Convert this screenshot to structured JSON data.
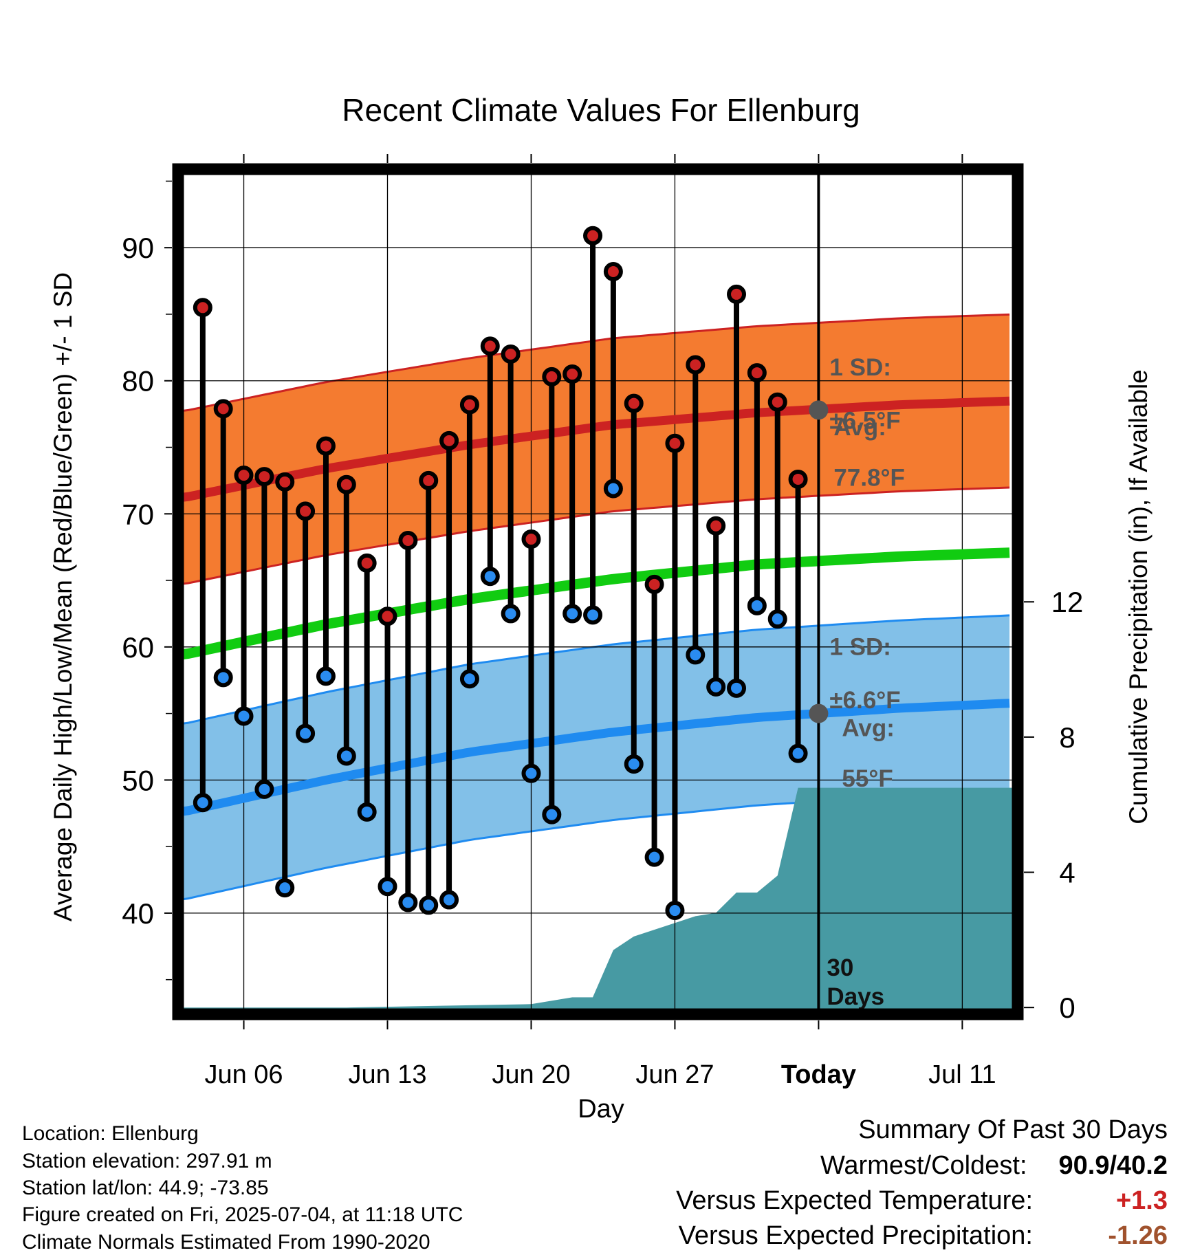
{
  "chart_data": {
    "type": "line",
    "title": "Recent Climate Values For Ellenburg",
    "xlabel": "Day",
    "ylabel": "Average Daily High/Low/Mean (Red/Blue/Green) +/- 1 SD",
    "y2label": "Cumulative Precipitation (in), If Available",
    "x_tick_labels": [
      "Jun 06",
      "Jun 13",
      "Jun 20",
      "Jun 27",
      "Today",
      "Jul 11"
    ],
    "x_tick_days": [
      6,
      13,
      20,
      27,
      34,
      41
    ],
    "xlim_days": [
      2.8,
      43.7
    ],
    "ylim": [
      32.4,
      95.9
    ],
    "y_ticks": [
      40,
      50,
      60,
      70,
      80,
      90
    ],
    "y2lim": [
      -0.2,
      24.8
    ],
    "y2_ticks": [
      0,
      4,
      8,
      12
    ],
    "today_day": 34,
    "grid": true,
    "series": [
      {
        "name": "Daily High",
        "color": "#cc2222",
        "days": [
          4,
          5,
          6,
          7,
          8,
          9,
          10,
          11,
          12,
          13,
          14,
          15,
          16,
          17,
          18,
          19,
          20,
          21,
          22,
          23,
          24,
          25,
          26,
          27,
          28,
          29,
          30,
          31,
          32,
          33
        ],
        "values": [
          85.5,
          77.9,
          72.9,
          72.8,
          72.4,
          70.2,
          75.1,
          72.2,
          66.3,
          62.3,
          68.0,
          72.5,
          75.5,
          78.2,
          82.6,
          82.0,
          68.1,
          80.3,
          80.5,
          90.9,
          88.2,
          78.3,
          64.7,
          75.3,
          81.2,
          69.1,
          86.5,
          80.6,
          78.4,
          72.6
        ]
      },
      {
        "name": "Daily Low",
        "color": "#2a8cf0",
        "days": [
          4,
          5,
          6,
          7,
          8,
          9,
          10,
          11,
          12,
          13,
          14,
          15,
          16,
          17,
          18,
          19,
          20,
          21,
          22,
          23,
          24,
          25,
          26,
          27,
          28,
          29,
          30,
          31,
          32,
          33
        ],
        "values": [
          48.3,
          57.7,
          54.8,
          49.3,
          41.9,
          53.5,
          57.8,
          51.8,
          47.6,
          42.0,
          40.8,
          40.6,
          41.0,
          57.6,
          65.3,
          62.5,
          50.5,
          47.4,
          62.5,
          62.4,
          71.9,
          51.2,
          44.2,
          40.2,
          59.4,
          57.0,
          56.9,
          63.1,
          62.1,
          52.0
        ]
      },
      {
        "name": "Normal High",
        "color": "#cc2222",
        "x": [
          3,
          10,
          17,
          24,
          31,
          38,
          43.7
        ],
        "mean": [
          71.2,
          73.4,
          75.2,
          76.7,
          77.6,
          78.2,
          78.5
        ],
        "sd": 6.5,
        "fill": "#f47b30"
      },
      {
        "name": "Normal Low",
        "color": "#1f8bf0",
        "x": [
          3,
          10,
          17,
          24,
          31,
          38,
          43.7
        ],
        "mean": [
          47.6,
          50.0,
          52.1,
          53.6,
          54.7,
          55.4,
          55.8
        ],
        "sd": 6.6,
        "fill": "#82c0e8"
      },
      {
        "name": "Normal Mean",
        "color": "#11cc11",
        "x": [
          3,
          10,
          17,
          24,
          31,
          38,
          43.7
        ],
        "mean": [
          59.4,
          61.7,
          63.6,
          65.1,
          66.2,
          66.8,
          67.1
        ]
      },
      {
        "name": "Cumulative Precipitation",
        "color": "#479aa3",
        "days": [
          3,
          11,
          20,
          20,
          22,
          23,
          24,
          25,
          27,
          28,
          29,
          30,
          31,
          32,
          33,
          34,
          43.7
        ],
        "values": [
          0,
          0,
          0.1,
          0.1,
          0.3,
          0.3,
          1.7,
          2.1,
          2.5,
          2.7,
          2.8,
          3.4,
          3.4,
          3.9,
          6.5,
          6.5,
          6.5
        ]
      }
    ],
    "annotations": {
      "high_sd_label": "1 SD:",
      "high_sd_value": "±6.5°F",
      "high_avg_label": "Avg:",
      "high_avg_value": "77.8°F",
      "high_avg": 77.8,
      "low_sd_label": "1 SD:",
      "low_sd_value": "±6.6°F",
      "low_avg_label": "Avg:",
      "low_avg_value": "55°F",
      "low_avg": 55.0,
      "window_label_1": "30",
      "window_label_2": "Days"
    }
  },
  "station": {
    "location": "Location: Ellenburg",
    "elevation": "Station elevation: 297.91 m",
    "latlon": "Station lat/lon: 44.9; -73.85",
    "created": "Figure created on Fri, 2025-07-04, at 11:18 UTC",
    "normals": "Climate Normals Estimated From 1990-2020"
  },
  "summary": {
    "title": "Summary Of Past 30 Days",
    "warm_label": "Warmest/Coldest:",
    "warm_value": "90.9/40.2",
    "temp_label": "Versus Expected Temperature:",
    "temp_value": "+1.3",
    "temp_color": "#cc2222",
    "precip_label": "Versus Expected Precipitation:",
    "precip_value": "-1.26",
    "precip_color": "#a0522d"
  }
}
